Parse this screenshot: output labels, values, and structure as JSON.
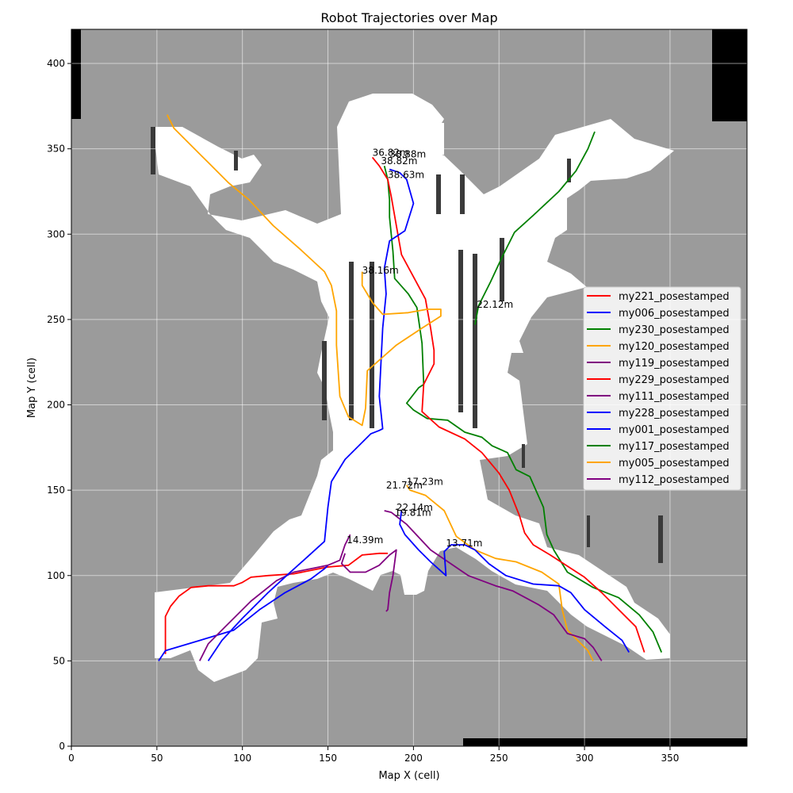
{
  "chart_data": {
    "type": "line",
    "title": "Robot Trajectories over Map",
    "xlabel": "Map X (cell)",
    "ylabel": "Map Y (cell)",
    "xlim": [
      0,
      395
    ],
    "ylim": [
      0,
      420
    ],
    "xticks": [
      0,
      50,
      100,
      150,
      200,
      250,
      300,
      350
    ],
    "yticks": [
      0,
      50,
      100,
      150,
      200,
      250,
      300,
      350,
      400
    ],
    "grid": true,
    "legend_position": "right",
    "background": {
      "unknown_color": "#9b9b9b",
      "free_color": "#ffffff",
      "occupied_color": "#000000",
      "wall_color": "#3a3a3a"
    },
    "series": [
      {
        "name": "my221_posestamped",
        "color": "#ff0000",
        "points": [
          [
            55,
            54
          ],
          [
            55,
            76
          ],
          [
            58,
            82
          ],
          [
            63,
            88
          ],
          [
            70,
            93
          ],
          [
            80,
            94
          ],
          [
            95,
            94
          ],
          [
            100,
            96
          ],
          [
            105,
            99
          ],
          [
            115,
            100
          ],
          [
            130,
            101
          ],
          [
            150,
            105
          ],
          [
            162,
            106
          ],
          [
            170,
            112
          ],
          [
            180,
            113
          ],
          [
            185,
            113
          ]
        ],
        "end_label": "14.39m"
      },
      {
        "name": "my006_posestamped",
        "color": "#0000ff",
        "points": [
          [
            51,
            50
          ],
          [
            55,
            56
          ],
          [
            75,
            62
          ],
          [
            95,
            68
          ],
          [
            110,
            80
          ],
          [
            125,
            90
          ],
          [
            140,
            98
          ],
          [
            148,
            104
          ],
          [
            150,
            106
          ]
        ],
        "end_label": ""
      },
      {
        "name": "my230_posestamped",
        "color": "#008000",
        "points": [
          [
            345,
            55
          ],
          [
            340,
            67
          ],
          [
            332,
            77
          ],
          [
            320,
            87
          ],
          [
            305,
            93
          ],
          [
            290,
            102
          ],
          [
            282,
            115
          ],
          [
            278,
            124
          ],
          [
            276,
            140
          ],
          [
            268,
            158
          ],
          [
            260,
            162
          ],
          [
            255,
            172
          ],
          [
            246,
            176
          ],
          [
            240,
            181
          ],
          [
            230,
            184
          ],
          [
            220,
            191
          ],
          [
            208,
            192
          ],
          [
            200,
            197
          ],
          [
            196,
            201
          ],
          [
            203,
            210
          ],
          [
            206,
            212
          ],
          [
            205,
            236
          ],
          [
            202,
            257
          ],
          [
            197,
            265
          ],
          [
            189,
            274
          ],
          [
            188,
            290
          ],
          [
            186,
            310
          ],
          [
            186,
            320
          ],
          [
            185,
            332
          ],
          [
            183,
            340
          ]
        ],
        "end_label": "38.88m"
      },
      {
        "name": "my120_posestamped",
        "color": "#ffa500",
        "points": [
          [
            305,
            50
          ],
          [
            302,
            56
          ],
          [
            296,
            62
          ],
          [
            290,
            68
          ],
          [
            287,
            80
          ],
          [
            285,
            95
          ],
          [
            275,
            102
          ],
          [
            260,
            108
          ],
          [
            248,
            110
          ],
          [
            236,
            115
          ],
          [
            225,
            123
          ],
          [
            218,
            138
          ],
          [
            207,
            147
          ],
          [
            198,
            150
          ],
          [
            196,
            153
          ]
        ],
        "end_label": "17.23m"
      },
      {
        "name": "my119_posestamped",
        "color": "#800080",
        "points": [
          [
            310,
            50
          ],
          [
            305,
            58
          ],
          [
            300,
            63
          ],
          [
            290,
            66
          ],
          [
            282,
            77
          ],
          [
            273,
            83
          ],
          [
            258,
            91
          ],
          [
            248,
            94
          ],
          [
            232,
            100
          ],
          [
            210,
            115
          ],
          [
            196,
            130
          ],
          [
            187,
            137
          ],
          [
            183,
            138
          ]
        ],
        "end_label": "22.14m"
      },
      {
        "name": "my229_posestamped",
        "color": "#ff0000",
        "points": [
          [
            335,
            55
          ],
          [
            330,
            70
          ],
          [
            320,
            80
          ],
          [
            310,
            90
          ],
          [
            300,
            99
          ],
          [
            280,
            112
          ],
          [
            270,
            118
          ],
          [
            265,
            125
          ],
          [
            262,
            135
          ],
          [
            256,
            150
          ],
          [
            250,
            160
          ],
          [
            240,
            172
          ],
          [
            230,
            180
          ],
          [
            215,
            187
          ],
          [
            205,
            196
          ],
          [
            206,
            212
          ],
          [
            212,
            224
          ],
          [
            212,
            232
          ],
          [
            210,
            245
          ],
          [
            207,
            262
          ],
          [
            200,
            275
          ],
          [
            193,
            288
          ],
          [
            190,
            305
          ],
          [
            187,
            322
          ],
          [
            185,
            332
          ],
          [
            180,
            340
          ],
          [
            176,
            345
          ]
        ],
        "end_label": "36.82m"
      },
      {
        "name": "my111_posestamped",
        "color": "#800080",
        "points": [
          [
            75,
            50
          ],
          [
            80,
            60
          ],
          [
            90,
            70
          ],
          [
            105,
            85
          ],
          [
            120,
            97
          ],
          [
            130,
            102
          ],
          [
            145,
            105
          ],
          [
            150,
            106
          ],
          [
            157,
            109
          ],
          [
            160,
            118
          ],
          [
            163,
            124
          ]
        ],
        "end_label": ""
      },
      {
        "name": "my228_posestamped",
        "color": "#0000ff",
        "points": [
          [
            326,
            55
          ],
          [
            322,
            62
          ],
          [
            312,
            70
          ],
          [
            300,
            80
          ],
          [
            292,
            90
          ],
          [
            285,
            94
          ],
          [
            270,
            95
          ],
          [
            254,
            100
          ],
          [
            244,
            107
          ],
          [
            236,
            115
          ],
          [
            230,
            118
          ],
          [
            222,
            118
          ],
          [
            218,
            114
          ],
          [
            219,
            100
          ],
          [
            210,
            108
          ],
          [
            203,
            115
          ],
          [
            195,
            124
          ],
          [
            192,
            130
          ],
          [
            193,
            138
          ]
        ],
        "end_label": "19.81m"
      },
      {
        "name": "my001_posestamped",
        "color": "#0000ff",
        "points": [
          [
            80,
            50
          ],
          [
            88,
            62
          ],
          [
            100,
            75
          ],
          [
            115,
            90
          ],
          [
            127,
            101
          ],
          [
            137,
            110
          ],
          [
            148,
            120
          ],
          [
            150,
            140
          ],
          [
            152,
            155
          ],
          [
            160,
            168
          ],
          [
            175,
            183
          ],
          [
            180,
            185
          ],
          [
            182,
            186
          ],
          [
            180,
            205
          ],
          [
            182,
            245
          ],
          [
            184,
            265
          ],
          [
            183,
            280
          ],
          [
            186,
            296
          ],
          [
            195,
            302
          ],
          [
            200,
            318
          ],
          [
            196,
            332
          ],
          [
            192,
            336
          ],
          [
            186,
            338
          ]
        ],
        "end_label": "38.82m"
      },
      {
        "name": "my117_posestamped",
        "color": "#008000",
        "points": [
          [
            306,
            360
          ],
          [
            302,
            350
          ],
          [
            295,
            337
          ],
          [
            285,
            325
          ],
          [
            270,
            311
          ],
          [
            259,
            301
          ],
          [
            252,
            287
          ],
          [
            245,
            272
          ],
          [
            238,
            258
          ],
          [
            236,
            247
          ]
        ],
        "end_label": "22.12m"
      },
      {
        "name": "my005_posestamped",
        "color": "#ffa500",
        "points": [
          [
            56,
            370
          ],
          [
            60,
            362
          ],
          [
            70,
            352
          ],
          [
            80,
            342
          ],
          [
            92,
            330
          ],
          [
            104,
            320
          ],
          [
            118,
            305
          ],
          [
            134,
            291
          ],
          [
            148,
            278
          ],
          [
            152,
            270
          ],
          [
            155,
            255
          ],
          [
            155,
            235
          ],
          [
            157,
            205
          ],
          [
            162,
            193
          ],
          [
            170,
            188
          ],
          [
            172,
            198
          ],
          [
            173,
            220
          ],
          [
            190,
            235
          ],
          [
            205,
            245
          ],
          [
            216,
            252
          ],
          [
            216,
            256
          ],
          [
            208,
            256
          ],
          [
            197,
            254
          ],
          [
            182,
            253
          ],
          [
            176,
            260
          ],
          [
            170,
            270
          ],
          [
            170,
            278
          ]
        ],
        "end_label": "38.16m"
      },
      {
        "name": "my112_posestamped",
        "color": "#800080",
        "points": [
          [
            160,
            113
          ],
          [
            158,
            107
          ],
          [
            163,
            102
          ],
          [
            172,
            102
          ],
          [
            180,
            106
          ],
          [
            186,
            112
          ],
          [
            190,
            115
          ],
          [
            188,
            100
          ],
          [
            186,
            90
          ],
          [
            185,
            80
          ],
          [
            184,
            79
          ]
        ],
        "end_label": "21.72m"
      }
    ],
    "annotations": [
      {
        "text": "36.82m",
        "x": 176,
        "y": 346
      },
      {
        "text": "38.88m",
        "x": 186,
        "y": 345
      },
      {
        "text": "38.82m",
        "x": 181,
        "y": 341
      },
      {
        "text": "38.63m",
        "x": 185,
        "y": 333
      },
      {
        "text": "38.16m",
        "x": 170,
        "y": 277
      },
      {
        "text": "22.12m",
        "x": 237,
        "y": 257
      },
      {
        "text": "17.23m",
        "x": 196,
        "y": 153
      },
      {
        "text": "21.72m",
        "x": 184,
        "y": 151
      },
      {
        "text": "22.14m",
        "x": 190,
        "y": 138
      },
      {
        "text": "19.81m",
        "x": 189,
        "y": 135
      },
      {
        "text": "14.39m",
        "x": 161,
        "y": 119
      },
      {
        "text": "13.71m",
        "x": 219,
        "y": 117
      }
    ]
  }
}
